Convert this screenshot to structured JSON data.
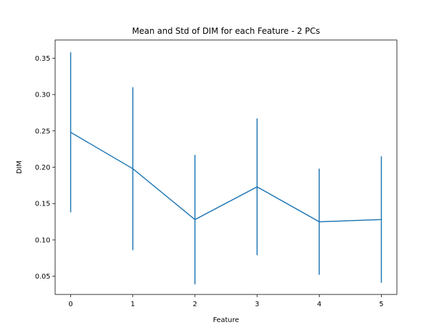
{
  "chart_data": {
    "type": "line",
    "title": "Mean and Std of DIM for each Feature - 2 PCs",
    "xlabel": "Feature",
    "ylabel": "DIM",
    "x": [
      0,
      1,
      2,
      3,
      4,
      5
    ],
    "x_tick_labels": [
      "0",
      "1",
      "2",
      "3",
      "4",
      "5"
    ],
    "xlim": [
      -0.25,
      5.25
    ],
    "ylim": [
      0.025,
      0.375
    ],
    "y_ticks": [
      0.05,
      0.1,
      0.15,
      0.2,
      0.25,
      0.3,
      0.35
    ],
    "y_tick_labels": [
      "0.05",
      "0.10",
      "0.15",
      "0.20",
      "0.25",
      "0.30",
      "0.35"
    ],
    "series": [
      {
        "mean": [
          0.248,
          0.198,
          0.128,
          0.173,
          0.125,
          0.128
        ],
        "std": [
          0.11,
          0.112,
          0.089,
          0.094,
          0.073,
          0.087
        ]
      }
    ],
    "color": "#1f77b4",
    "grid": false,
    "legend": "none"
  }
}
